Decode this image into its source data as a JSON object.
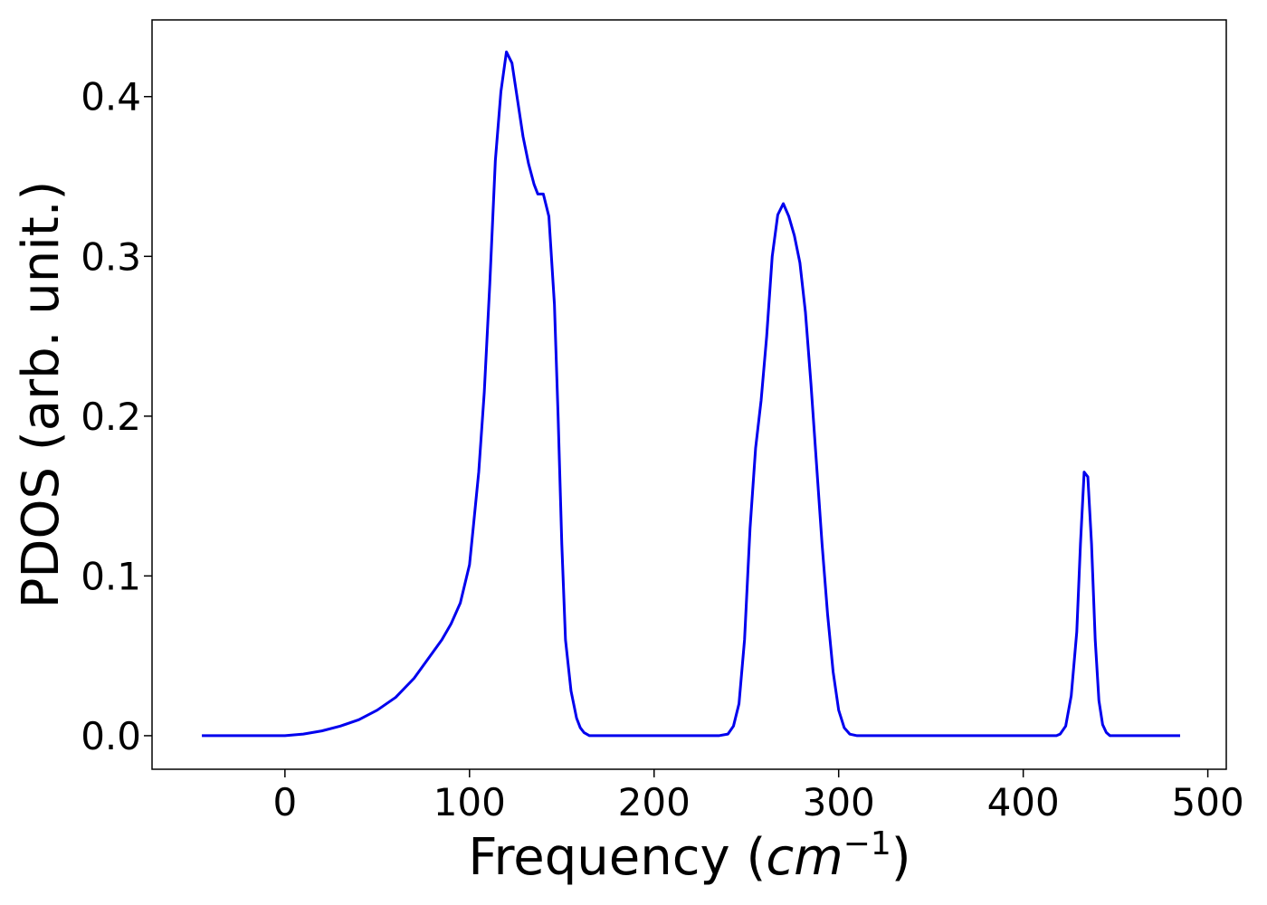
{
  "chart_data": {
    "type": "line",
    "title": "",
    "xlabel": "Frequency (cm⁻¹)",
    "xlabel_main": "Frequency (",
    "xlabel_unit": "cm",
    "xlabel_exp": "−1",
    "xlabel_close": ")",
    "ylabel": "PDOS (arb. unit.)",
    "xlim": [
      -72,
      510
    ],
    "ylim": [
      -0.021,
      0.448
    ],
    "xticks": [
      0,
      100,
      200,
      300,
      400,
      500
    ],
    "xtick_labels": [
      "0",
      "100",
      "200",
      "300",
      "400",
      "500"
    ],
    "yticks": [
      0.0,
      0.1,
      0.2,
      0.3,
      0.4
    ],
    "ytick_labels": [
      "0.0",
      "0.1",
      "0.2",
      "0.3",
      "0.4"
    ],
    "grid": false,
    "legend": "none",
    "color": "#0000ee",
    "series": [
      {
        "x": [
          -45,
          0,
          10,
          20,
          30,
          40,
          50,
          60,
          70,
          80,
          85,
          90,
          95,
          100,
          102,
          105,
          108,
          111,
          114,
          117,
          120,
          123,
          126,
          129,
          132,
          135,
          137,
          140,
          143,
          146,
          148,
          150,
          152,
          155,
          158,
          160,
          162,
          165,
          170,
          200,
          235,
          240,
          243,
          246,
          249,
          252,
          255,
          258,
          261,
          264,
          267,
          270,
          273,
          276,
          279,
          282,
          285,
          288,
          291,
          294,
          297,
          300,
          303,
          306,
          310,
          350,
          418,
          420,
          423,
          426,
          429,
          431,
          433,
          435,
          437,
          439,
          441,
          443,
          445,
          447,
          450,
          455,
          485
        ],
        "y": [
          0.0,
          0.0,
          0.001,
          0.003,
          0.006,
          0.01,
          0.016,
          0.024,
          0.036,
          0.052,
          0.06,
          0.07,
          0.083,
          0.107,
          0.13,
          0.165,
          0.215,
          0.283,
          0.36,
          0.403,
          0.428,
          0.421,
          0.398,
          0.375,
          0.358,
          0.345,
          0.339,
          0.339,
          0.325,
          0.27,
          0.2,
          0.12,
          0.06,
          0.028,
          0.011,
          0.005,
          0.002,
          0.0,
          0.0,
          0.0,
          0.0,
          0.001,
          0.006,
          0.02,
          0.06,
          0.13,
          0.18,
          0.21,
          0.25,
          0.3,
          0.326,
          0.333,
          0.325,
          0.313,
          0.296,
          0.265,
          0.22,
          0.17,
          0.12,
          0.076,
          0.04,
          0.016,
          0.005,
          0.001,
          0.0,
          0.0,
          0.0,
          0.001,
          0.006,
          0.025,
          0.065,
          0.12,
          0.165,
          0.162,
          0.12,
          0.06,
          0.022,
          0.007,
          0.002,
          0.0,
          0.0,
          0.0,
          0.0
        ]
      }
    ]
  }
}
